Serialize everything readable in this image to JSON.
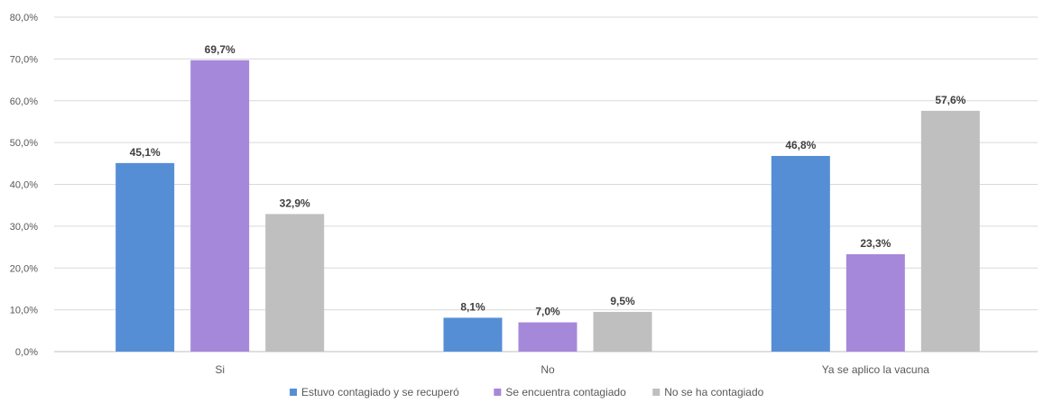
{
  "chart_data": {
    "type": "bar",
    "categories": [
      "Si",
      "No",
      "Ya se aplico la vacuna"
    ],
    "series": [
      {
        "name": "Estuvo contagiado y se recuperó",
        "values": [
          45.1,
          8.1,
          46.8
        ],
        "labels": [
          "45,1%",
          "8,1%",
          "46,8%"
        ],
        "color": "#558ed5"
      },
      {
        "name": "Se encuentra contagiado",
        "values": [
          69.7,
          7.0,
          23.3
        ],
        "labels": [
          "69,7%",
          "7,0%",
          "23,3%"
        ],
        "color": "#a688db"
      },
      {
        "name": "No se ha contagiado",
        "values": [
          32.9,
          9.5,
          57.6
        ],
        "labels": [
          "32,9%",
          "9,5%",
          "57,6%"
        ],
        "color": "#bfbfbf"
      }
    ],
    "yticks": [
      0,
      10,
      20,
      30,
      40,
      50,
      60,
      70,
      80
    ],
    "ytick_labels": [
      "0,0%",
      "10,0%",
      "20,0%",
      "30,0%",
      "40,0%",
      "50,0%",
      "60,0%",
      "70,0%",
      "80,0%"
    ],
    "ylim": [
      0,
      80
    ],
    "grid": true,
    "legend_position": "bottom"
  }
}
